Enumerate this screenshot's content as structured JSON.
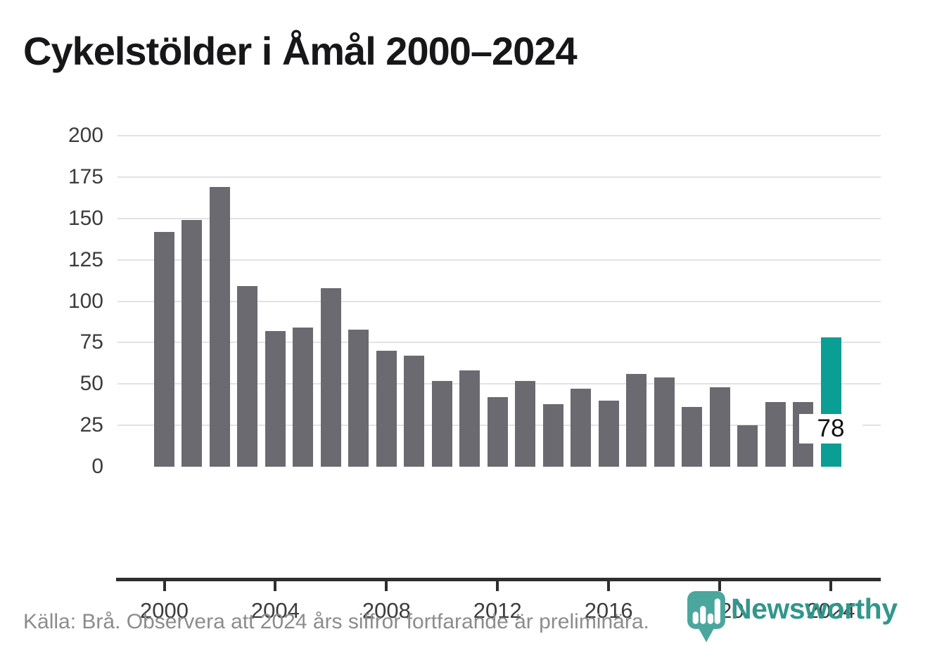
{
  "title": "Cykelstölder i Åmål 2000–2024",
  "chart_data": {
    "type": "bar",
    "title": "Cykelstölder i Åmål 2000–2024",
    "categories": [
      2000,
      2001,
      2002,
      2003,
      2004,
      2005,
      2006,
      2007,
      2008,
      2009,
      2010,
      2011,
      2012,
      2013,
      2014,
      2015,
      2016,
      2017,
      2018,
      2019,
      2020,
      2021,
      2022,
      2023,
      2024
    ],
    "values": [
      142,
      149,
      169,
      109,
      82,
      84,
      108,
      83,
      70,
      67,
      52,
      58,
      42,
      52,
      38,
      47,
      40,
      56,
      54,
      36,
      48,
      25,
      39,
      39,
      78
    ],
    "highlighted_category": 2024,
    "highlight_value_label": "78",
    "ylim": [
      0,
      200
    ],
    "yticks": [
      0,
      25,
      50,
      75,
      100,
      125,
      150,
      175,
      200
    ],
    "xtick_labels": [
      2000,
      2004,
      2008,
      2012,
      2016,
      2020,
      2024
    ],
    "grid": "horizontal",
    "legend": "none",
    "colors": {
      "bar": "#6b6a70",
      "highlight": "#0b9e95",
      "gridline": "#e3e3e3",
      "axis_line": "#2e2e2e",
      "tick_label": "#3c3c3c",
      "value_label": "#111111"
    }
  },
  "footer": {
    "source_text": "Källa: Brå. Observera att 2024 års siffror fortfarande är preliminära."
  },
  "logo": {
    "wordmark": "Newsworthy",
    "icon": "newsworthy-pin-barchart-icon",
    "wordmark_color": "#31978c",
    "icon_color": "#4ba69d"
  }
}
